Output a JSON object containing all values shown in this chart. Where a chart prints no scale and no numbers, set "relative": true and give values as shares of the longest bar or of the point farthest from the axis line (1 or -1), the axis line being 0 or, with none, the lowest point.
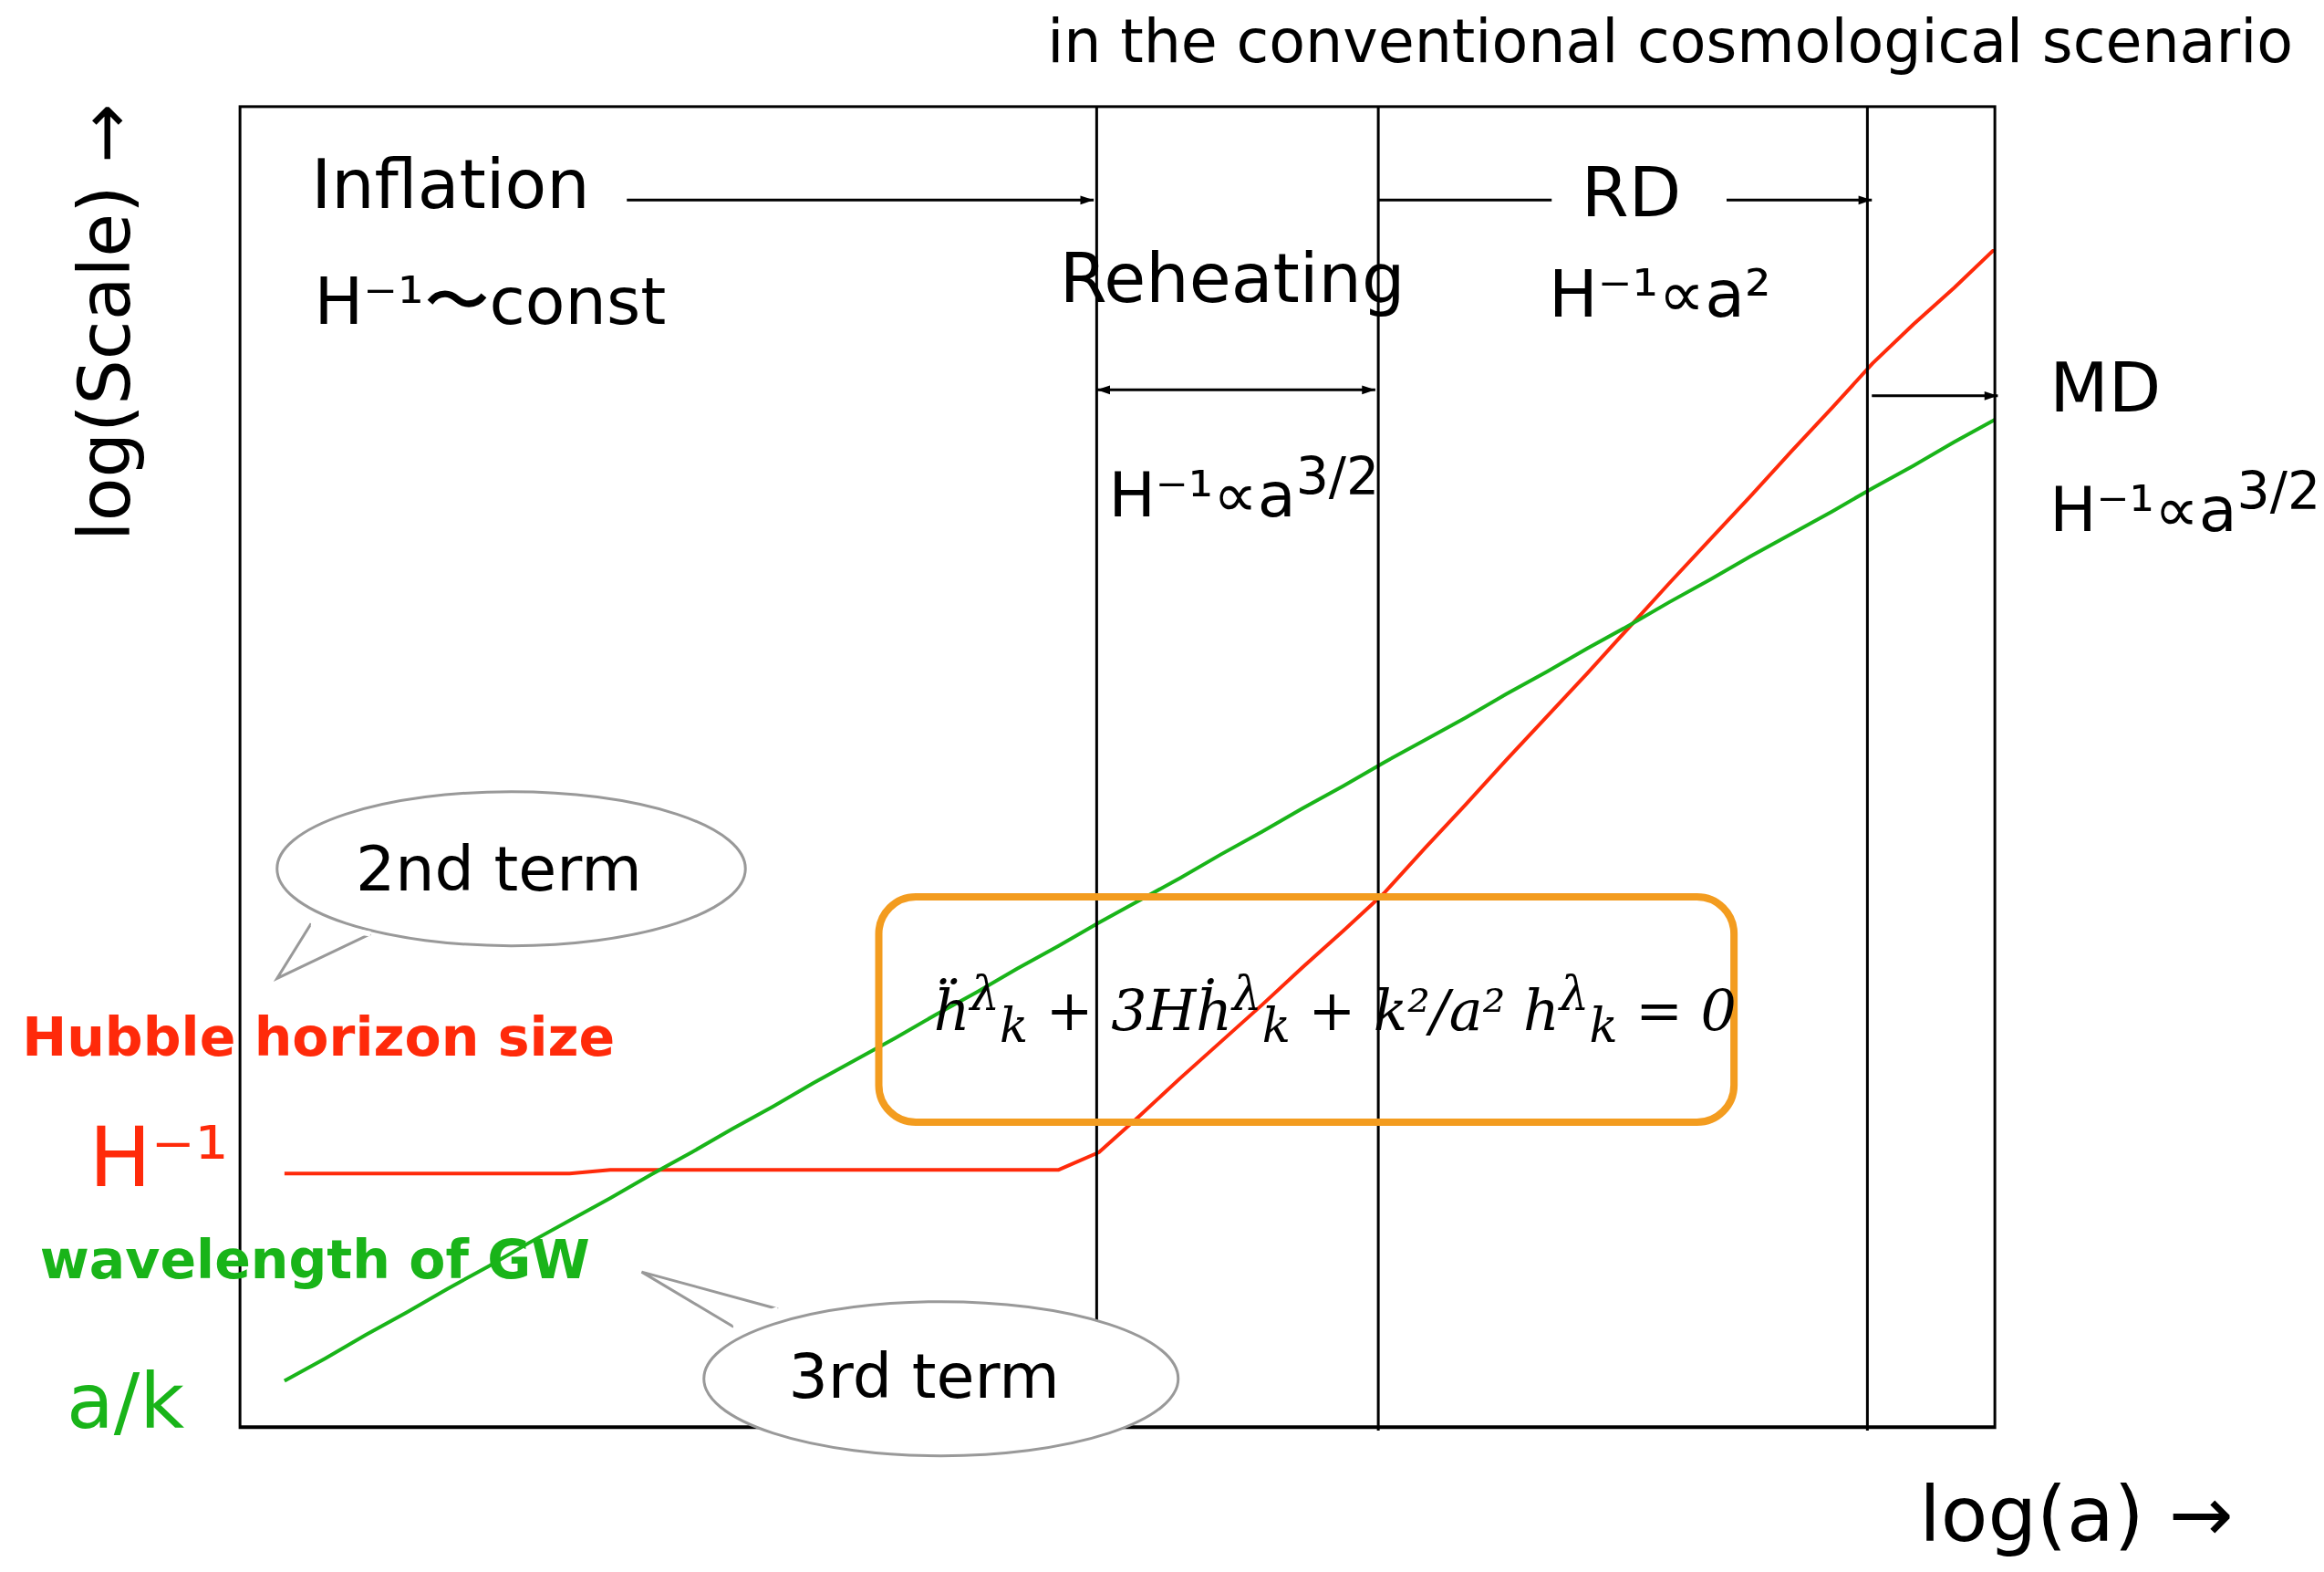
{
  "chart_data": {
    "type": "line",
    "title": "in the conventional cosmological scenario",
    "relative": true,
    "categories": [
      null,
      null,
      null,
      null,
      null,
      null,
      null,
      null,
      null,
      null,
      null,
      null,
      null,
      null,
      null,
      null,
      null,
      null,
      null,
      null,
      null,
      null,
      null,
      null,
      null,
      null,
      null,
      null,
      null,
      null,
      null,
      null,
      null,
      null,
      null,
      null,
      null,
      null,
      null,
      null,
      null,
      null,
      null
    ],
    "series": [
      {
        "name": "Hubble horizon size",
        "color": "#ff2a0a",
        "values": [
          0.215,
          0.215,
          0.215,
          0.215,
          0.215,
          0.215,
          0.215,
          0.215,
          0.218,
          0.218,
          0.218,
          0.218,
          0.218,
          0.218,
          0.218,
          0.218,
          0.218,
          0.218,
          0.218,
          0.218,
          0.233,
          0.264,
          0.296,
          0.327,
          0.358,
          0.39,
          0.421,
          0.453,
          0.491,
          0.528,
          0.566,
          0.603,
          0.64,
          0.678,
          0.716,
          0.753,
          0.79,
          0.828,
          0.865,
          0.903,
          0.936,
          0.967,
          1
        ]
      },
      {
        "name": "wavelength of GW",
        "color": "#19b419",
        "values": [
          0.039,
          0.058,
          0.078,
          0.097,
          0.117,
          0.136,
          0.156,
          0.175,
          0.194,
          0.214,
          0.233,
          0.253,
          0.272,
          0.292,
          0.311,
          0.33,
          0.35,
          0.369,
          0.389,
          0.408,
          0.428,
          0.447,
          0.466,
          0.486,
          0.505,
          0.525,
          0.544,
          0.564,
          0.583,
          0.602,
          0.622,
          0.641,
          0.661,
          0.68,
          0.7,
          0.719,
          0.739,
          0.758,
          0.777,
          0.797,
          0.816,
          0.836,
          0.855
        ]
      }
    ],
    "annotations": [
      "Inflation",
      "H⁻¹〜const",
      "Reheating",
      "H⁻¹∝a$^{3/2}$",
      "RD",
      "H⁻¹∝a²",
      "MD",
      "H⁻¹∝a$^{3/2}$",
      "2nd term",
      "3rd term",
      "H⁻¹",
      "a/k",
      "ḧ$^{λ}$$_{k}$ + 3Hḣ$^{λ}$$_{k}$ + k²/a² h$^{λ}$$_{k}$ = 0",
      "log(a) →",
      "log(Scale) →"
    ]
  }
}
